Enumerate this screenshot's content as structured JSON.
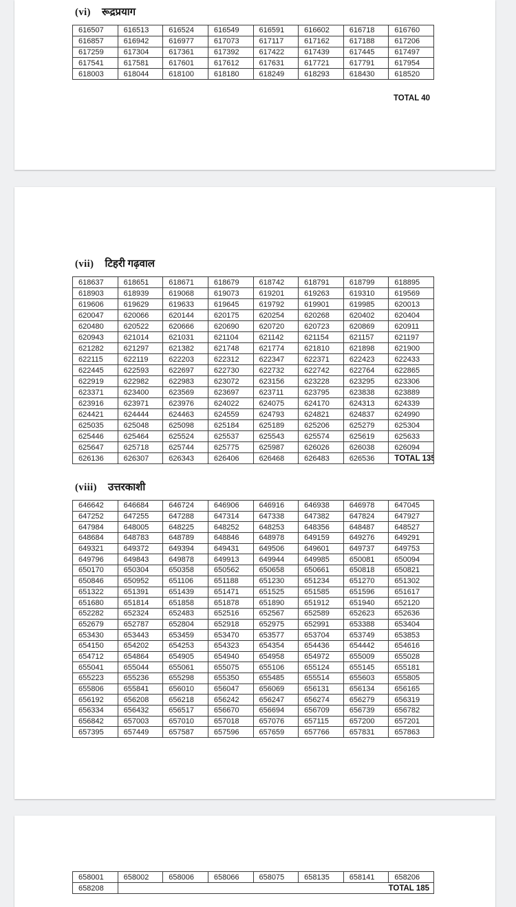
{
  "colors": {
    "canvas_background": "#eff0f2",
    "page_background": "#ffffff",
    "table_border": "#3b3b3b",
    "text": "#1c1c1c"
  },
  "sections": {
    "vi": {
      "label": "(vi)",
      "title": "रूद्रप्रयाग",
      "total_below": "TOTAL 40",
      "table": {
        "rows": [
          [
            "616507",
            "616513",
            "616524",
            "616549",
            "616591",
            "616602",
            "616718",
            "616760"
          ],
          [
            "616857",
            "616942",
            "616977",
            "617073",
            "617117",
            "617162",
            "617188",
            "617206"
          ],
          [
            "617259",
            "617304",
            "617361",
            "617392",
            "617422",
            "617439",
            "617445",
            "617497"
          ],
          [
            "617541",
            "617581",
            "617601",
            "617612",
            "617631",
            "617721",
            "617791",
            "617954"
          ],
          [
            "618003",
            "618044",
            "618100",
            "618180",
            "618249",
            "618293",
            "618430",
            "618520"
          ]
        ]
      }
    },
    "vii": {
      "label": "(vii)",
      "title": "टिहरी गढ़वाल",
      "table": {
        "rows": [
          [
            "618637",
            "618651",
            "618671",
            "618679",
            "618742",
            "618791",
            "618799",
            "618895"
          ],
          [
            "618903",
            "618939",
            "619068",
            "619073",
            "619201",
            "619263",
            "619310",
            "619569"
          ],
          [
            "619606",
            "619629",
            "619633",
            "619645",
            "619792",
            "619901",
            "619985",
            "620013"
          ],
          [
            "620047",
            "620066",
            "620144",
            "620175",
            "620254",
            "620268",
            "620402",
            "620404"
          ],
          [
            "620480",
            "620522",
            "620666",
            "620690",
            "620720",
            "620723",
            "620869",
            "620911"
          ],
          [
            "620943",
            "621014",
            "621031",
            "621104",
            "621142",
            "621154",
            "621157",
            "621197"
          ],
          [
            "621282",
            "621297",
            "621382",
            "621748",
            "621774",
            "621810",
            "621898",
            "621900"
          ],
          [
            "622115",
            "622119",
            "622203",
            "622312",
            "622347",
            "622371",
            "622423",
            "622433"
          ],
          [
            "622445",
            "622593",
            "622697",
            "622730",
            "622732",
            "622742",
            "622764",
            "622865"
          ],
          [
            "622919",
            "622982",
            "622983",
            "623072",
            "623156",
            "623228",
            "623295",
            "623306"
          ],
          [
            "623371",
            "623400",
            "623569",
            "623697",
            "623711",
            "623795",
            "623838",
            "623889"
          ],
          [
            "623916",
            "623971",
            "623976",
            "624022",
            "624075",
            "624170",
            "624313",
            "624339"
          ],
          [
            "624421",
            "624444",
            "624463",
            "624559",
            "624793",
            "624821",
            "624837",
            "624990"
          ],
          [
            "625035",
            "625048",
            "625098",
            "625184",
            "625189",
            "625206",
            "625279",
            "625304"
          ],
          [
            "625446",
            "625464",
            "625524",
            "625537",
            "625543",
            "625574",
            "625619",
            "625633"
          ],
          [
            "625647",
            "625718",
            "625744",
            "625775",
            "625987",
            "626026",
            "626038",
            "626094"
          ],
          [
            "626136",
            "626307",
            "626343",
            "626406",
            "626468",
            "626483",
            "626536"
          ]
        ],
        "total": {
          "text": "TOTAL 135",
          "span": 1,
          "align": "left"
        }
      }
    },
    "viii": {
      "label": "(viii)",
      "title": "उत्तरकाशी",
      "table": {
        "rows": [
          [
            "646642",
            "646684",
            "646724",
            "646906",
            "646916",
            "646938",
            "646978",
            "647045"
          ],
          [
            "647252",
            "647255",
            "647288",
            "647314",
            "647338",
            "647382",
            "647824",
            "647927"
          ],
          [
            "647984",
            "648005",
            "648225",
            "648252",
            "648253",
            "648356",
            "648487",
            "648527"
          ],
          [
            "648684",
            "648783",
            "648789",
            "648846",
            "648978",
            "649159",
            "649276",
            "649291"
          ],
          [
            "649321",
            "649372",
            "649394",
            "649431",
            "649506",
            "649601",
            "649737",
            "649753"
          ],
          [
            "649796",
            "649843",
            "649878",
            "649913",
            "649944",
            "649985",
            "650081",
            "650094"
          ],
          [
            "650170",
            "650304",
            "650358",
            "650562",
            "650658",
            "650661",
            "650818",
            "650821"
          ],
          [
            "650846",
            "650952",
            "651106",
            "651188",
            "651230",
            "651234",
            "651270",
            "651302"
          ],
          [
            "651322",
            "651391",
            "651439",
            "651471",
            "651525",
            "651585",
            "651596",
            "651617"
          ],
          [
            "651680",
            "651814",
            "651858",
            "651878",
            "651890",
            "651912",
            "651940",
            "652120"
          ],
          [
            "652282",
            "652324",
            "652483",
            "652516",
            "652567",
            "652589",
            "652623",
            "652636"
          ],
          [
            "652679",
            "652787",
            "652804",
            "652918",
            "652975",
            "652991",
            "653388",
            "653404"
          ],
          [
            "653430",
            "653443",
            "653459",
            "653470",
            "653577",
            "653704",
            "653749",
            "653853"
          ],
          [
            "654150",
            "654202",
            "654253",
            "654323",
            "654354",
            "654436",
            "654442",
            "654616"
          ],
          [
            "654712",
            "654864",
            "654905",
            "654940",
            "654958",
            "654972",
            "655009",
            "655028"
          ],
          [
            "655041",
            "655044",
            "655061",
            "655075",
            "655106",
            "655124",
            "655145",
            "655181"
          ],
          [
            "655223",
            "655236",
            "655298",
            "655350",
            "655485",
            "655514",
            "655603",
            "655805"
          ],
          [
            "655806",
            "655841",
            "656010",
            "656047",
            "656069",
            "656131",
            "656134",
            "656165"
          ],
          [
            "656192",
            "656208",
            "656218",
            "656242",
            "656247",
            "656274",
            "656279",
            "656319"
          ],
          [
            "656334",
            "656432",
            "656517",
            "656670",
            "656694",
            "656709",
            "656739",
            "656782"
          ],
          [
            "656842",
            "657003",
            "657010",
            "657018",
            "657076",
            "657115",
            "657200",
            "657201"
          ],
          [
            "657395",
            "657449",
            "657587",
            "657596",
            "657659",
            "657766",
            "657831",
            "657863"
          ]
        ]
      }
    },
    "next": {
      "table": {
        "rows": [
          [
            "658001",
            "658002",
            "658006",
            "658066",
            "658075",
            "658135",
            "658141",
            "658206"
          ],
          [
            "658208"
          ]
        ],
        "total": {
          "text": "TOTAL 185",
          "span": 7,
          "align": "right"
        }
      }
    }
  }
}
